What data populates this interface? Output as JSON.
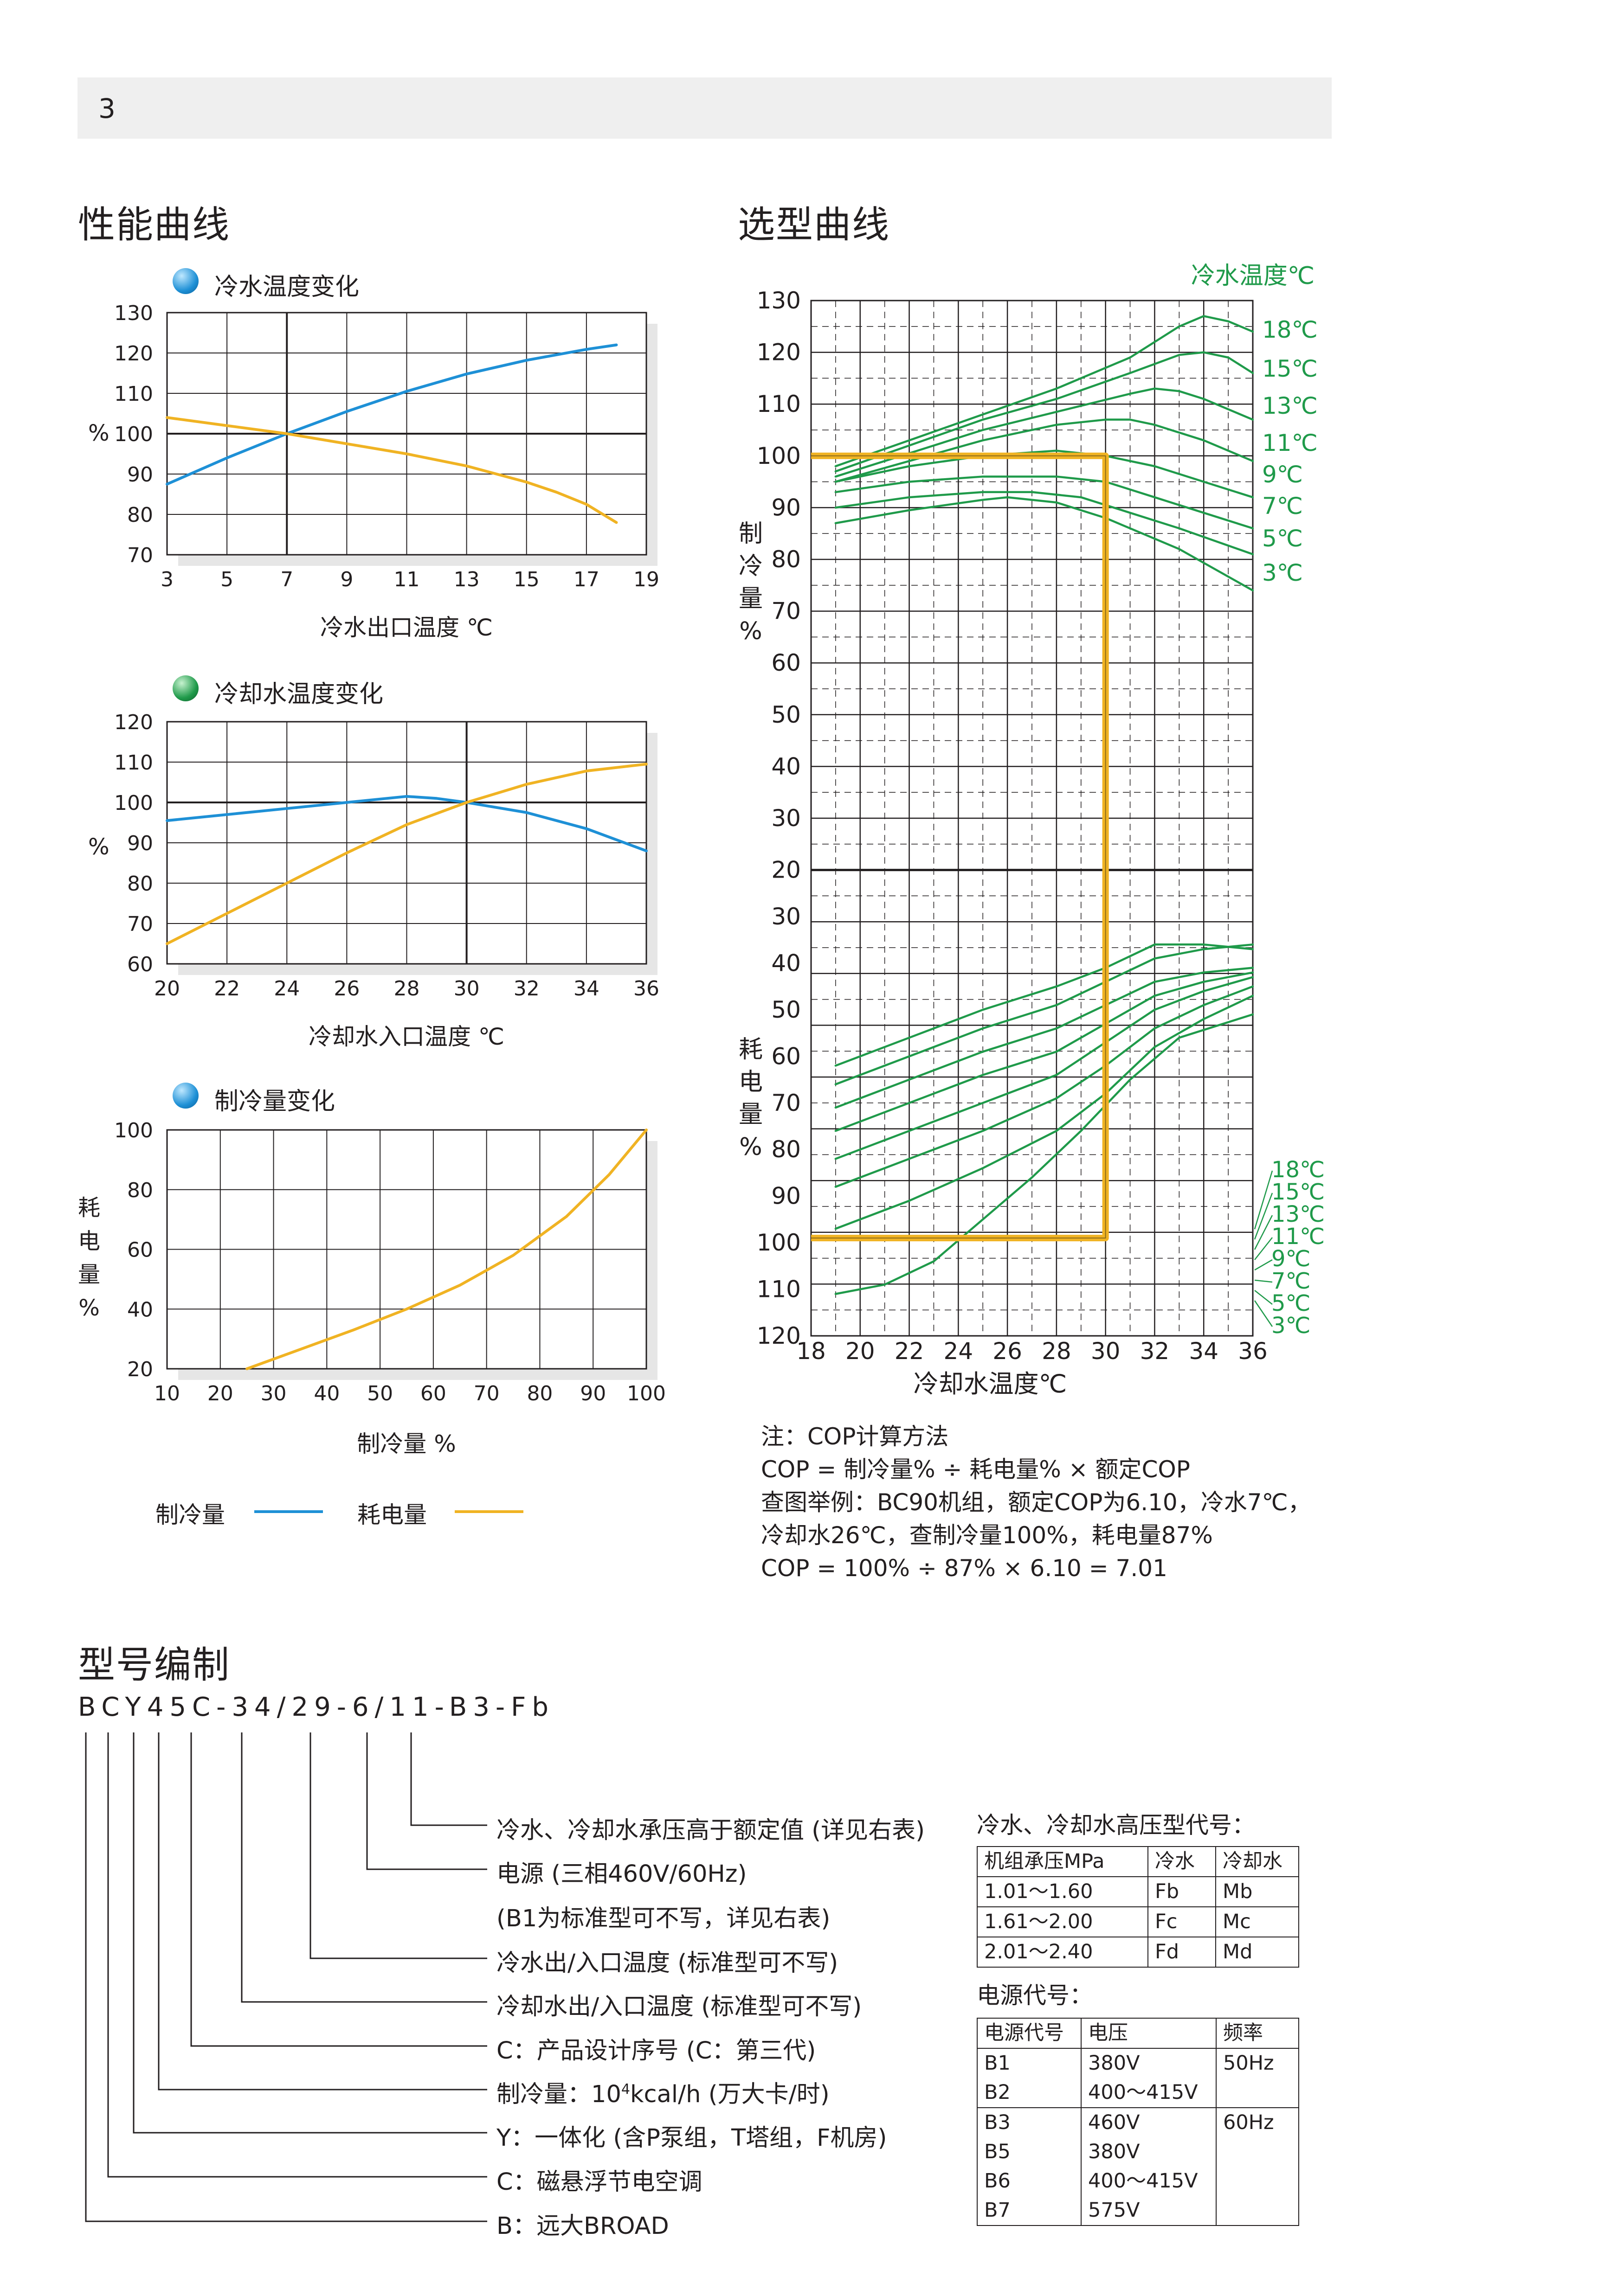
{
  "page_number": "3",
  "performance": {
    "title": "性能曲线",
    "chart1": {
      "title": "冷水温度变化",
      "ylabel": "%",
      "yticks": [
        "130",
        "120",
        "110",
        "100",
        "90",
        "80",
        "70"
      ],
      "xticks": [
        "3",
        "5",
        "7",
        "9",
        "11",
        "13",
        "15",
        "17",
        "19"
      ],
      "xlabel": "冷水出口温度 ℃"
    },
    "chart2": {
      "title": "冷却水温度变化",
      "ylabel": "%",
      "yticks": [
        "120",
        "110",
        "100",
        "90",
        "80",
        "70",
        "60"
      ],
      "xticks": [
        "20",
        "22",
        "24",
        "26",
        "28",
        "30",
        "32",
        "34",
        "36"
      ],
      "xlabel": "冷却水入口温度 ℃"
    },
    "chart3": {
      "title": "制冷量变化",
      "ylabel": [
        "耗",
        "电",
        "量",
        "%"
      ],
      "yticks": [
        "100",
        "80",
        "60",
        "40",
        "20"
      ],
      "xticks": [
        "10",
        "20",
        "30",
        "40",
        "50",
        "60",
        "70",
        "80",
        "90",
        "100"
      ],
      "xlabel": "制冷量 %"
    },
    "legend": {
      "cooling": "制冷量",
      "power": "耗电量"
    }
  },
  "selection": {
    "title": "选型曲线",
    "top_unit": "冷水温度℃",
    "yticks_top": [
      "130",
      "120",
      "110",
      "100",
      "90",
      "80",
      "70",
      "60",
      "50",
      "40",
      "30",
      "20"
    ],
    "yticks_bottom": [
      "30",
      "40",
      "50",
      "60",
      "70",
      "80",
      "90",
      "100",
      "110",
      "120"
    ],
    "ylabel_top": [
      "制",
      "冷",
      "量",
      "%"
    ],
    "ylabel_bottom": [
      "耗",
      "电",
      "量",
      "%"
    ],
    "xticks": [
      "18",
      "20",
      "22",
      "24",
      "26",
      "28",
      "30",
      "32",
      "34",
      "36"
    ],
    "xlabel": "冷却水温度℃",
    "curve_labels": [
      "18℃",
      "15℃",
      "13℃",
      "11℃",
      "9℃",
      "7℃",
      "5℃",
      "3℃"
    ]
  },
  "note": {
    "lines": [
      "注：COP计算方法",
      "COP = 制冷量% ÷ 耗电量% × 额定COP",
      "查图举例：BC90机组，额定COP为6.10，冷水7℃，",
      "冷却水26℃，查制冷量100%，耗电量87%",
      "COP = 100% ÷ 87% × 6.10 = 7.01"
    ]
  },
  "model": {
    "title": "型号编制",
    "code": "BCY45C-34/29-6/11-B3-Fb",
    "descriptions": [
      "冷水、冷却水承压高于额定值 (详见右表)",
      "电源 (三相460V/60Hz)",
      "(B1为标准型可不写，详见右表)",
      "冷水出/入口温度 (标准型可不写)",
      "冷却水出/入口温度 (标准型可不写)",
      "C：产品设计序号 (C：第三代)",
      "制冷量：10",
      "4",
      "kcal/h (万大卡/时)",
      "Y：一体化 (含P泵组，T塔组，F机房)",
      "C：磁悬浮节电空调",
      "B：远大BROAD"
    ]
  },
  "pressure_table": {
    "title": "冷水、冷却水高压型代号：",
    "headers": [
      "机组承压MPa",
      "冷水",
      "冷却水"
    ],
    "rows": [
      [
        "1.01～1.60",
        "Fb",
        "Mb"
      ],
      [
        "1.61～2.00",
        "Fc",
        "Mc"
      ],
      [
        "2.01～2.40",
        "Fd",
        "Md"
      ]
    ]
  },
  "power_table": {
    "title": "电源代号：",
    "headers": [
      "电源代号",
      "电压",
      "频率"
    ],
    "group1": {
      "codes": [
        "B1",
        "B2"
      ],
      "voltages": [
        "380V",
        "400～415V"
      ],
      "freq": "50Hz"
    },
    "group2": {
      "codes": [
        "B3",
        "B5",
        "B6",
        "B7"
      ],
      "voltages": [
        "460V",
        "380V",
        "400～415V",
        "575V"
      ],
      "freq": "60Hz"
    }
  },
  "colors": {
    "blue": "#1e90d6",
    "yellow": "#f0b323",
    "green": "#1f9a4a",
    "grid": "#231f20",
    "shadow": "#e6e6e6"
  }
}
